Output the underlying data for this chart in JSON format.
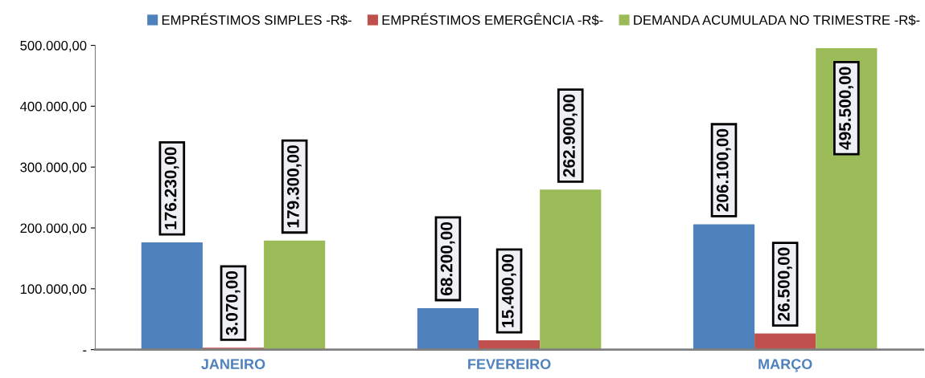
{
  "chart_data": {
    "type": "bar",
    "categories": [
      "JANEIRO",
      "FEVEREIRO",
      "MARÇO"
    ],
    "series": [
      {
        "name": "EMPRÉSTIMOS SIMPLES -R$-",
        "color": "#4f81bd",
        "values": [
          176230,
          68200,
          206100
        ],
        "value_labels": [
          "176.230,00",
          "68.200,00",
          "206.100,00"
        ]
      },
      {
        "name": "EMPRÉSTIMOS EMERGÊNCIA -R$-",
        "color": "#c0504d",
        "values": [
          3070,
          15400,
          26500
        ],
        "value_labels": [
          "3.070,00",
          "15.400,00",
          "26.500,00"
        ]
      },
      {
        "name": "DEMANDA ACUMULADA NO TRIMESTRE -R$-",
        "color": "#9bbb59",
        "values": [
          179300,
          262900,
          495500
        ],
        "value_labels": [
          "179.300,00",
          "262.900,00",
          "495.500,00"
        ]
      }
    ],
    "ylim": [
      0,
      500000
    ],
    "yticks": [
      {
        "value": 0,
        "label": "-"
      },
      {
        "value": 100000,
        "label": "100.000,00"
      },
      {
        "value": 200000,
        "label": "200.000,00"
      },
      {
        "value": 300000,
        "label": "300.000,00"
      },
      {
        "value": 400000,
        "label": "400.000,00"
      },
      {
        "value": 500000,
        "label": "500.000,00"
      }
    ],
    "grid": false,
    "legend": "top"
  }
}
